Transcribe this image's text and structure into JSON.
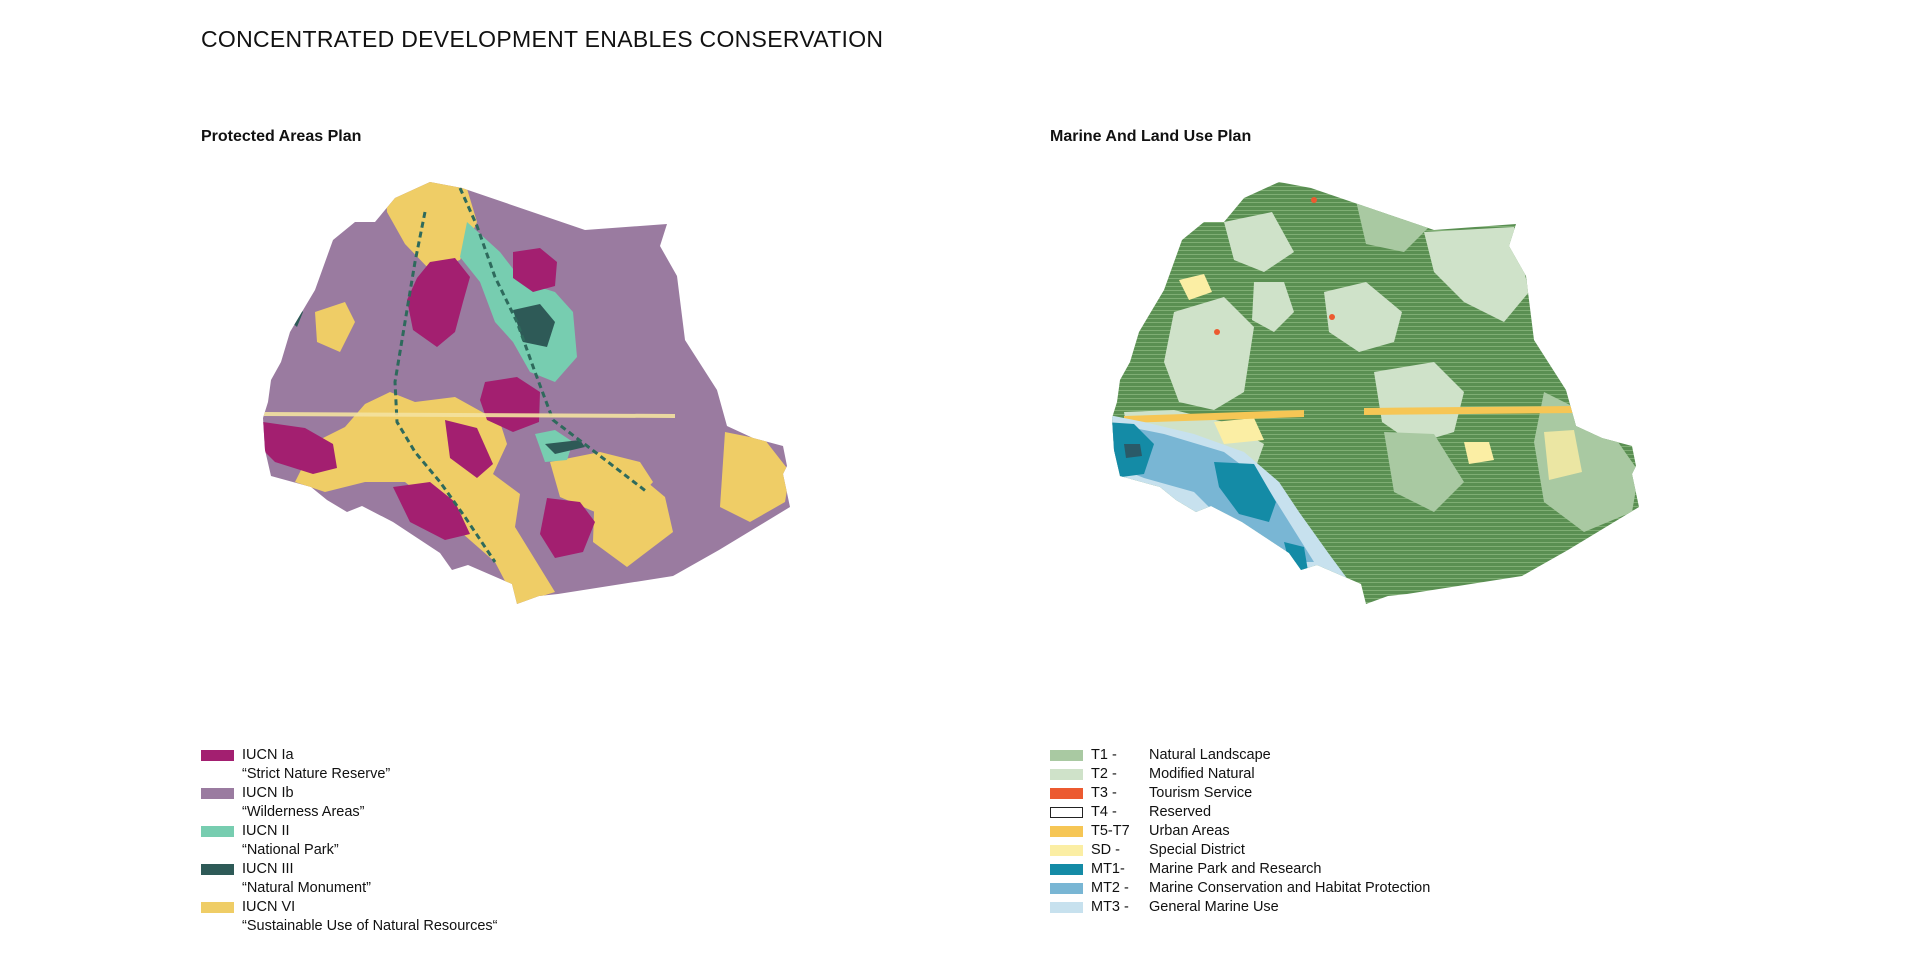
{
  "page": {
    "title": "CONCENTRATED DEVELOPMENT ENABLES CONSERVATION"
  },
  "left_panel": {
    "title": "Protected Areas Plan",
    "legend": [
      {
        "code": "IUCN Ia",
        "description": "“Strict Nature Reserve”",
        "color": "#a31f70"
      },
      {
        "code": "IUCN Ib",
        "description": "“Wilderness Areas”",
        "color": "#9a7ba0"
      },
      {
        "code": "IUCN II",
        "description": "“National Park”",
        "color": "#77cdb0"
      },
      {
        "code": "IUCN III",
        "description": "“Natural Monument”",
        "color": "#2e5a57"
      },
      {
        "code": "IUCN VI",
        "description": "“Sustainable Use of Natural Resources“",
        "color": "#efcd66"
      }
    ]
  },
  "right_panel": {
    "title": "Marine And Land Use Plan",
    "legend": [
      {
        "code": "T1 -",
        "label": "Natural Landscape",
        "color": "#a9c9a2"
      },
      {
        "code": "T2 -",
        "label": "Modified Natural",
        "color": "#cfe2c9"
      },
      {
        "code": "T3 -",
        "label": "Tourism Service",
        "color": "#ec5a30"
      },
      {
        "code": "T4 -",
        "label": "Reserved",
        "color": "#ffffff"
      },
      {
        "code": "T5-T7",
        "label": "Urban Areas",
        "color": "#f6c655"
      },
      {
        "code": "SD -",
        "label": "Special District",
        "color": "#fbeea4"
      },
      {
        "code": "MT1-",
        "label": "Marine Park and Research",
        "color": "#148ba6"
      },
      {
        "code": "MT2 -",
        "label": "Marine Conservation and Habitat Protection",
        "color": "#79b6d4"
      },
      {
        "code": "MT3 -",
        "label": "General Marine Use",
        "color": "#c7e1ee"
      }
    ]
  }
}
